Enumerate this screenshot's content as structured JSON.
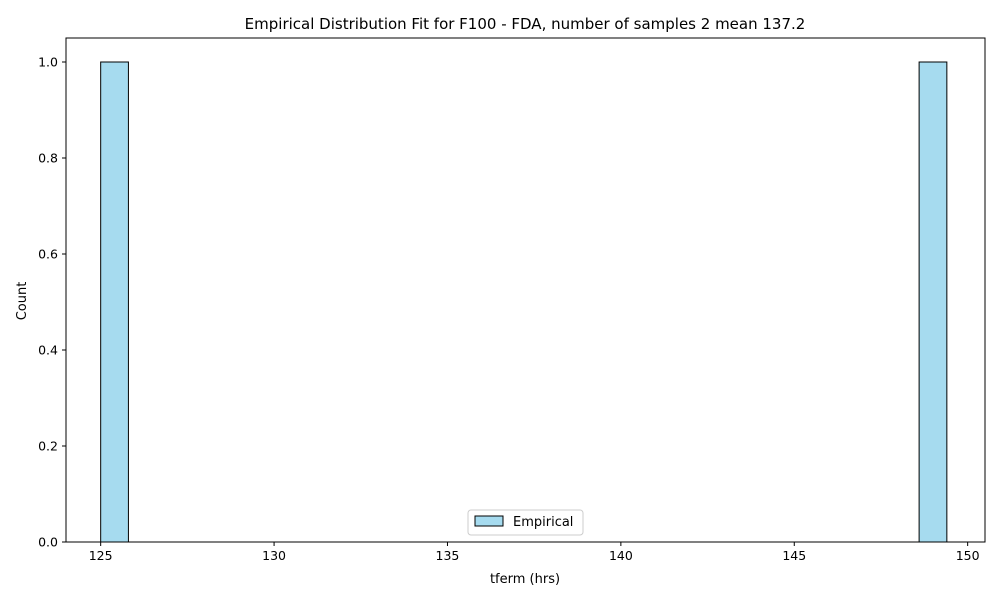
{
  "chart_data": {
    "type": "bar",
    "title": "Empirical Distribution Fit for F100 - FDA, number of samples 2 mean 137.2",
    "xlabel": "tferm (hrs)",
    "ylabel": "Count",
    "xlim": [
      124.0,
      150.5
    ],
    "ylim": [
      0,
      1.05
    ],
    "xticks": [
      125,
      130,
      135,
      140,
      145,
      150
    ],
    "yticks": [
      0.0,
      0.2,
      0.4,
      0.6,
      0.8,
      1.0
    ],
    "grid": false,
    "legend_position": "bottom-center",
    "series": [
      {
        "name": "Empirical",
        "color": "#a6dbef",
        "edge_color": "#000000",
        "bins": [
          {
            "x0": 125.0,
            "x1": 125.8,
            "count": 1
          },
          {
            "x0": 148.6,
            "x1": 149.4,
            "count": 1
          }
        ]
      }
    ]
  }
}
